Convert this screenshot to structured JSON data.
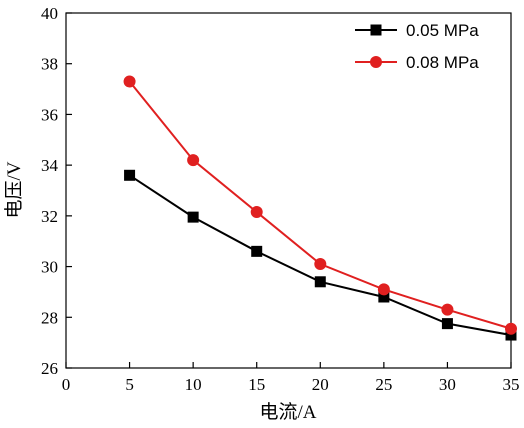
{
  "chart_data": {
    "type": "line",
    "xlabel": "电流/A",
    "ylabel": "电压/V",
    "xlim": [
      0,
      35
    ],
    "ylim": [
      26,
      40
    ],
    "xticks": [
      0,
      5,
      10,
      15,
      20,
      25,
      30,
      35
    ],
    "yticks": [
      26,
      28,
      30,
      32,
      34,
      36,
      38,
      40
    ],
    "grid": false,
    "legend_position": "top-right",
    "series": [
      {
        "name": "0.05 MPa",
        "color": "#000000",
        "marker": "square",
        "x": [
          5,
          10,
          15,
          20,
          25,
          30,
          35
        ],
        "y": [
          33.6,
          31.95,
          30.6,
          29.4,
          28.8,
          27.75,
          27.3
        ]
      },
      {
        "name": "0.08 MPa",
        "color": "#e02020",
        "marker": "circle",
        "x": [
          5,
          10,
          15,
          20,
          25,
          30,
          35
        ],
        "y": [
          37.3,
          34.2,
          32.15,
          30.1,
          29.1,
          28.3,
          27.55
        ]
      }
    ]
  }
}
